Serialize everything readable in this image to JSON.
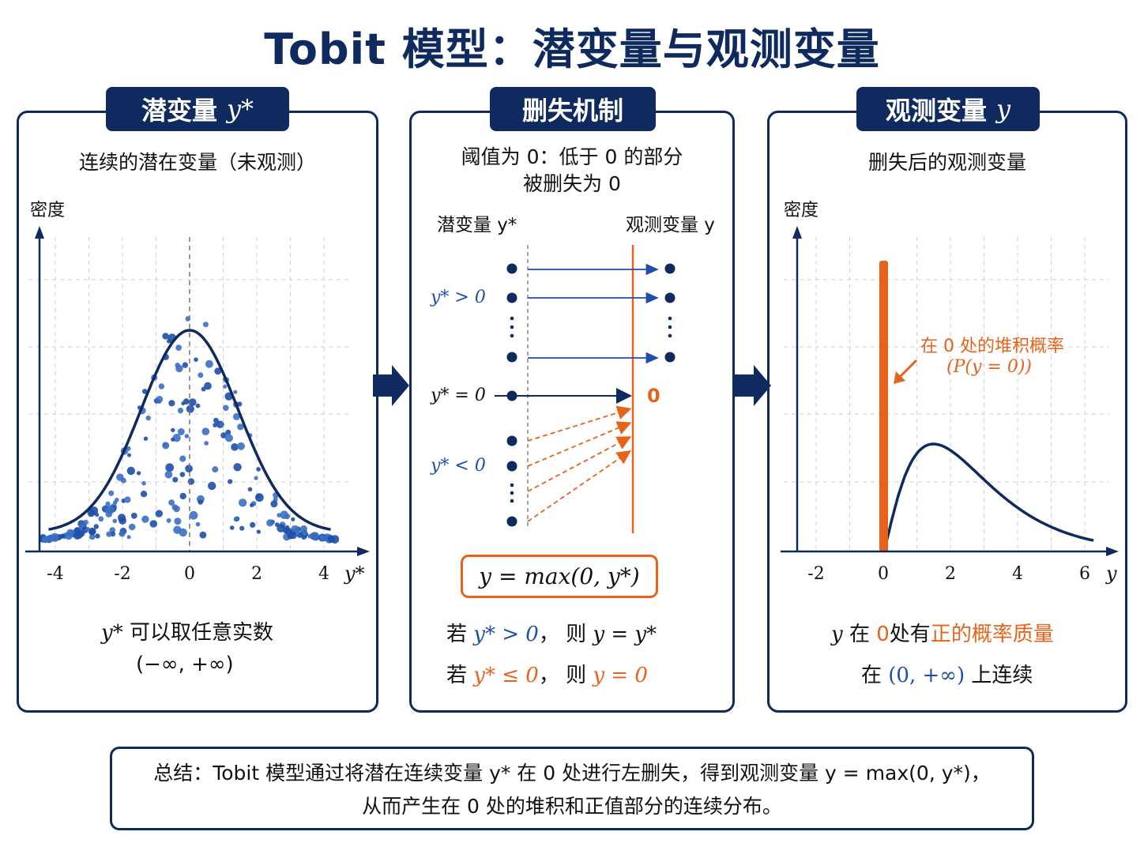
{
  "title": "Tobit 模型：潜变量与观测变量",
  "panel1": {
    "tab_label": "潜变量",
    "tab_symbol": "y*",
    "subtitle": "连续的潜在变量（未观测）",
    "ylabel": "密度",
    "xlabel": "y*",
    "ticks": [
      "-4",
      "-2",
      "0",
      "2",
      "4"
    ],
    "note_symbol": "y*",
    "note_line1": "可以取任意实数",
    "note_line2": "(−∞, +∞)"
  },
  "panel2": {
    "tab_label": "删失机制",
    "subtitle_line1": "阈值为 0：低于 0 的部分",
    "subtitle_line2": "被删失为 0",
    "left_header": "潜变量 y*",
    "right_header": "观测变量 y",
    "label_pos": "y* > 0",
    "label_zero": "y* = 0",
    "label_neg": "y* < 0",
    "zero_value": "0",
    "formula": "y = max(0, y*)",
    "rule1_prefix": "若",
    "rule1_cond": "y* > 0",
    "rule1_mid": "，  则",
    "rule1_result": "y = y*",
    "rule2_prefix": "若",
    "rule2_cond": "y* ≤ 0",
    "rule2_mid": "，  则",
    "rule2_result": "y = 0"
  },
  "panel3": {
    "tab_label": "观测变量",
    "tab_symbol": "y",
    "subtitle": "删失后的观测变量",
    "ylabel": "密度",
    "xlabel": "y",
    "ticks": [
      "-2",
      "0",
      "2",
      "4",
      "6"
    ],
    "annotation_line1": "在 0 处的堆积概率",
    "annotation_line2": "(P(y = 0))",
    "note_sym": "y",
    "note_a": "在",
    "note_zero": "0",
    "note_b": "处有",
    "note_highlight": "正的概率质量",
    "note2_a": "在",
    "note2_interval": "(0, +∞)",
    "note2_b": "上连续"
  },
  "summary": {
    "line1": "总结：Tobit 模型通过将潜在连续变量 y* 在 0 处进行左删失，得到观测变量 y = max(0, y*)，",
    "line2": "从而产生在 0 处的堆积和正值部分的连续分布。"
  },
  "colors": {
    "navy": "#0e2a5e",
    "blue": "#1f4fa8",
    "orange": "#e8631a"
  }
}
